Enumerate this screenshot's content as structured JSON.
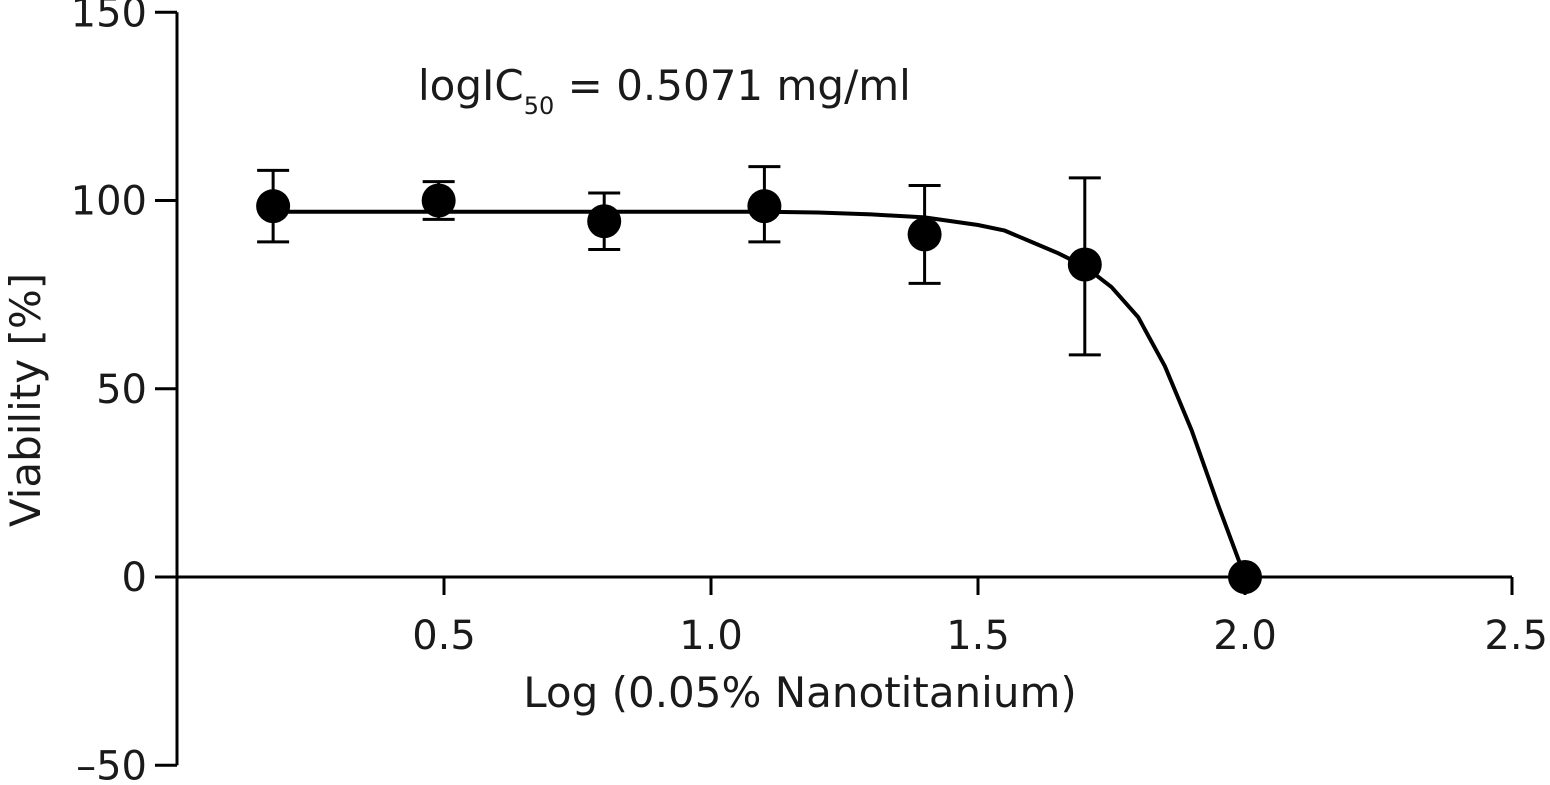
{
  "chart_data": {
    "type": "scatter",
    "xlabel": "Log (0.05% Nanotitanium)",
    "ylabel": "Viability [%]",
    "annotation": {
      "main": "logIC",
      "subscript": "50",
      "rest": " = 0.5071 mg/ml"
    },
    "xlim": [
      0,
      2.5
    ],
    "ylim": [
      -50,
      150
    ],
    "x_ticks": [
      0.5,
      1.0,
      1.5,
      2.0,
      2.5
    ],
    "x_tick_labels": [
      "0.5",
      "1.0",
      "1.5",
      "2.0",
      "2.5"
    ],
    "y_ticks": [
      150,
      100,
      50,
      0,
      -50
    ],
    "y_tick_labels": [
      "150",
      "100",
      "50",
      "0",
      "–50"
    ],
    "grid": false,
    "points": [
      {
        "x": 0.18,
        "y": 98.5,
        "err_low": 89,
        "err_high": 108
      },
      {
        "x": 0.49,
        "y": 100,
        "err_low": 95,
        "err_high": 105
      },
      {
        "x": 0.8,
        "y": 94.5,
        "err_low": 87,
        "err_high": 102
      },
      {
        "x": 1.1,
        "y": 98.5,
        "err_low": 89,
        "err_high": 109
      },
      {
        "x": 1.4,
        "y": 91,
        "err_low": 78,
        "err_high": 104
      },
      {
        "x": 1.7,
        "y": 83,
        "err_low": 59,
        "err_high": 106
      },
      {
        "x": 2.0,
        "y": 0,
        "err_low": 0,
        "err_high": 0
      }
    ],
    "fit_curve": {
      "x": [
        0.18,
        0.4,
        0.6,
        0.8,
        1.0,
        1.1,
        1.2,
        1.3,
        1.4,
        1.5,
        1.55,
        1.6,
        1.65,
        1.7,
        1.75,
        1.8,
        1.85,
        1.9,
        1.95,
        2.0
      ],
      "y": [
        97,
        97,
        97,
        97,
        97,
        97,
        96.8,
        96.3,
        95.5,
        93.5,
        92,
        89,
        86,
        82.5,
        77,
        69,
        56,
        39,
        19,
        0
      ]
    }
  }
}
